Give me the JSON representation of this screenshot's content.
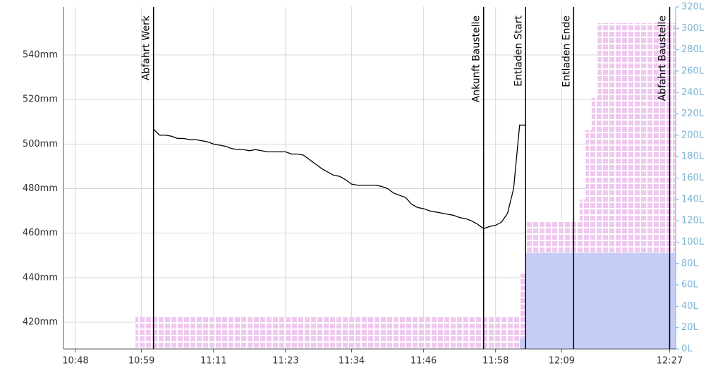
{
  "chart_data": {
    "type": "line",
    "xlim": [
      "10:46",
      "12:28"
    ],
    "xticks": [
      "10:48",
      "10:59",
      "11:11",
      "11:23",
      "11:34",
      "11:46",
      "11:58",
      "12:09",
      "12:27"
    ],
    "ylim": [
      408,
      561.5
    ],
    "yticks": [
      {
        "value": 420,
        "label": "420mm"
      },
      {
        "value": 440,
        "label": "440mm"
      },
      {
        "value": 460,
        "label": "460mm"
      },
      {
        "value": 480,
        "label": "480mm"
      },
      {
        "value": 500,
        "label": "500mm"
      },
      {
        "value": 520,
        "label": "520mm"
      },
      {
        "value": 540,
        "label": "540mm"
      }
    ],
    "y2lim": [
      0,
      320
    ],
    "y2ticks": [
      {
        "value": 0,
        "label": "0L"
      },
      {
        "value": 20,
        "label": "20L"
      },
      {
        "value": 40,
        "label": "40L"
      },
      {
        "value": 60,
        "label": "60L"
      },
      {
        "value": 80,
        "label": "80L"
      },
      {
        "value": 100,
        "label": "100L"
      },
      {
        "value": 120,
        "label": "120L"
      },
      {
        "value": 140,
        "label": "140L"
      },
      {
        "value": 160,
        "label": "160L"
      },
      {
        "value": 180,
        "label": "180L"
      },
      {
        "value": 200,
        "label": "200L"
      },
      {
        "value": 220,
        "label": "220L"
      },
      {
        "value": 240,
        "label": "240L"
      },
      {
        "value": 260,
        "label": "260L"
      },
      {
        "value": 280,
        "label": "280L"
      },
      {
        "value": 300,
        "label": "300L"
      },
      {
        "value": 320,
        "label": "320L"
      }
    ],
    "grid": true,
    "y2color": "#79b4d6",
    "annotations": [
      {
        "label": "Abfahrt Werk",
        "x": "11:01"
      },
      {
        "label": "Ankunft Baustelle",
        "x": "11:56"
      },
      {
        "label": "Entladen Start",
        "x": "12:03"
      },
      {
        "label": "Entladen Ende",
        "x": "12:11"
      },
      {
        "label": "Abfahrt Baustelle",
        "x": "12:27"
      }
    ],
    "series": [
      {
        "color": "#000000",
        "x": [
          "11:01",
          "11:02",
          "11:03",
          "11:04",
          "11:05",
          "11:06",
          "11:07",
          "11:08",
          "11:09",
          "11:10",
          "11:11",
          "11:12",
          "11:13",
          "11:14",
          "11:15",
          "11:16",
          "11:17",
          "11:18",
          "11:19",
          "11:20",
          "11:21",
          "11:22",
          "11:23",
          "11:24",
          "11:25",
          "11:26",
          "11:27",
          "11:28",
          "11:29",
          "11:30",
          "11:31",
          "11:32",
          "11:33",
          "11:34",
          "11:35",
          "11:36",
          "11:37",
          "11:38",
          "11:39",
          "11:40",
          "11:41",
          "11:42",
          "11:43",
          "11:44",
          "11:45",
          "11:46",
          "11:47",
          "11:48",
          "11:49",
          "11:50",
          "11:51",
          "11:52",
          "11:53",
          "11:54",
          "11:55",
          "11:56",
          "11:57",
          "11:58",
          "11:59",
          "12:00",
          "12:01",
          "12:02",
          "12:03"
        ],
        "values": [
          506.7,
          504,
          504,
          503.5,
          502.5,
          502.5,
          502,
          502,
          501.5,
          501,
          500,
          499.5,
          499,
          498,
          497.5,
          497.5,
          497,
          497.5,
          497,
          496.5,
          496.5,
          496.5,
          496.5,
          495.5,
          495.5,
          495,
          493,
          491,
          489,
          487.5,
          486,
          485.5,
          484,
          482,
          481.5,
          481.5,
          481.5,
          481.5,
          481,
          480,
          478,
          477,
          476,
          473,
          471.5,
          471,
          470,
          469.5,
          469,
          468.5,
          468,
          467,
          466.5,
          465.5,
          464,
          462,
          463,
          463.5,
          465,
          469,
          480,
          508.5,
          508.5
        ]
      },
      {
        "color": "#efc8ef",
        "axis": "y2",
        "step": true,
        "pattern": true,
        "x": [
          "10:58",
          "12:01",
          "12:02",
          "12:03",
          "12:12",
          "12:13",
          "12:14",
          "12:15",
          "12:28"
        ],
        "values": [
          30,
          30,
          70,
          120,
          140,
          205,
          235,
          305,
          305
        ]
      },
      {
        "color": "#c5cdf6",
        "axis": "y2",
        "step": true,
        "x": [
          "12:02",
          "12:03",
          "12:28"
        ],
        "values": [
          10,
          90,
          90
        ]
      }
    ]
  }
}
